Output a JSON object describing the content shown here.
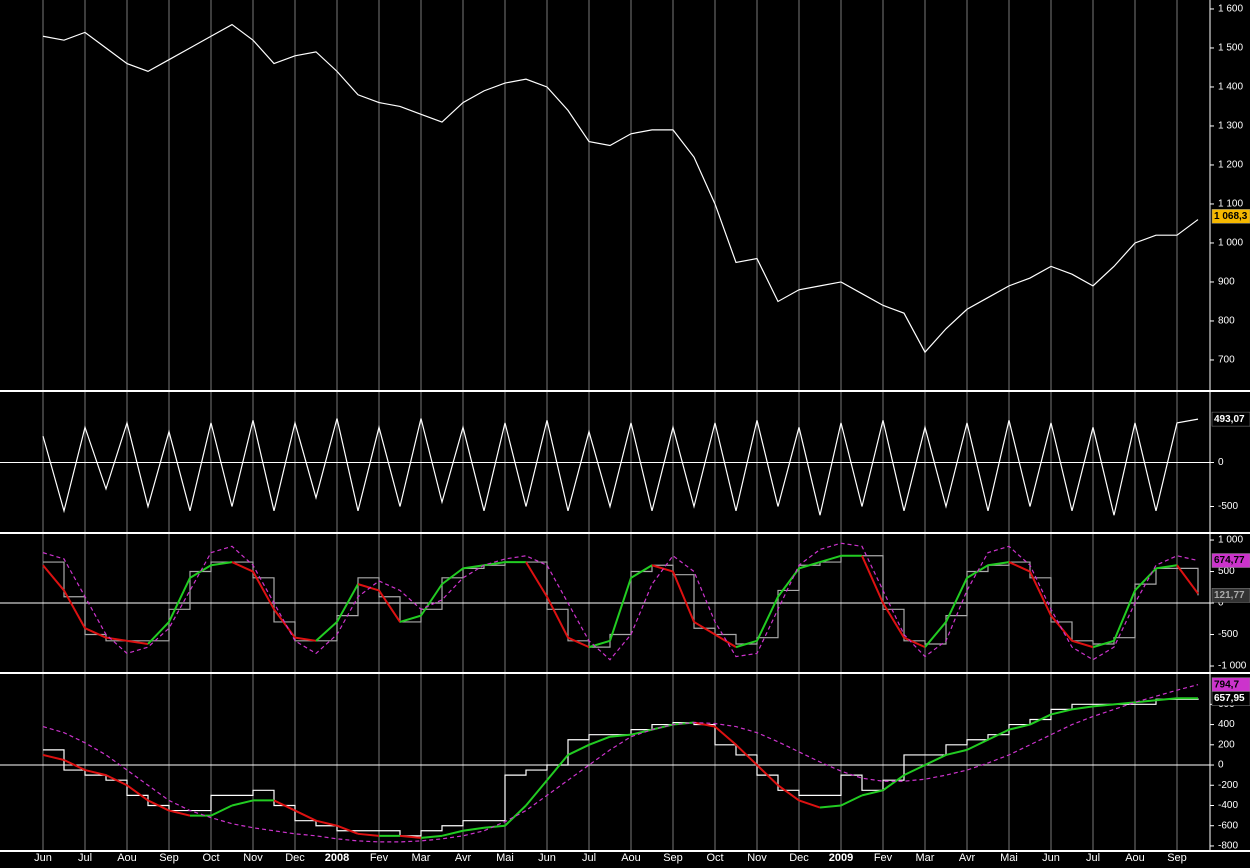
{
  "chart_data": [
    {
      "type": "line",
      "ylim": [
        623,
        1623
      ],
      "yticks": [
        {
          "value": 1600,
          "label": "1 600"
        },
        {
          "value": 1500,
          "label": "1 500"
        },
        {
          "value": 1400,
          "label": "1 400"
        },
        {
          "value": 1300,
          "label": "1 300"
        },
        {
          "value": 1200,
          "label": "1 200"
        },
        {
          "value": 1100,
          "label": "1 100"
        },
        {
          "value": 1000,
          "label": "1 000"
        },
        900,
        800,
        700
      ],
      "series": [
        {
          "color": "#ffffff",
          "style": "solid",
          "values": [
            1530,
            1520,
            1540,
            1500,
            1460,
            1440,
            1470,
            1500,
            1530,
            1560,
            1520,
            1460,
            1480,
            1490,
            1440,
            1380,
            1360,
            1350,
            1330,
            1310,
            1360,
            1390,
            1410,
            1420,
            1400,
            1340,
            1260,
            1250,
            1280,
            1290,
            1290,
            1220,
            1100,
            950,
            960,
            850,
            880,
            890,
            900,
            870,
            840,
            820,
            720,
            780,
            830,
            860,
            890,
            910,
            940,
            920,
            890,
            940,
            1000,
            1020,
            1020,
            1060
          ]
        }
      ],
      "markers": [
        {
          "value": 1068.3,
          "label": "1 068,3",
          "color": "#f5b800",
          "text_color": "#000000"
        }
      ]
    },
    {
      "type": "line",
      "ylim": [
        -790,
        790
      ],
      "yticks": [
        -500,
        0
      ],
      "hlines": [
        0
      ],
      "series": [
        {
          "color": "#ffffff",
          "style": "solid",
          "values": [
            300,
            -550,
            400,
            -300,
            450,
            -500,
            350,
            -550,
            450,
            -500,
            480,
            -550,
            450,
            -400,
            500,
            -550,
            400,
            -500,
            500,
            -450,
            400,
            -550,
            450,
            -500,
            480,
            -550,
            350,
            -500,
            450,
            -550,
            400,
            -500,
            450,
            -550,
            480,
            -500,
            400,
            -600,
            450,
            -500,
            480,
            -550,
            400,
            -500,
            450,
            -550,
            480,
            -500,
            450,
            -550,
            400,
            -600,
            450,
            -550,
            450,
            493.07
          ]
        }
      ],
      "markers": [
        {
          "value": 493.07,
          "label": "493,07",
          "color": "#000000",
          "text_color": "#ffffff"
        }
      ]
    },
    {
      "type": "line",
      "ylim": [
        -1095,
        1080
      ],
      "yticks": [
        {
          "value": 1000,
          "label": "1 000"
        },
        500,
        0,
        -500,
        {
          "value": -1000,
          "label": "-1 000"
        }
      ],
      "hlines": [
        0
      ],
      "series": [
        {
          "color": "#aaaaaa",
          "style": "step",
          "values": [
            650,
            100,
            -500,
            -600,
            -600,
            -600,
            -100,
            500,
            650,
            650,
            400,
            -300,
            -600,
            -600,
            -200,
            400,
            100,
            -300,
            -100,
            400,
            550,
            600,
            650,
            650,
            -100,
            -600,
            -700,
            -500,
            500,
            600,
            450,
            -400,
            -500,
            -650,
            -550,
            200,
            600,
            650,
            750,
            750,
            -100,
            -600,
            -650,
            -200,
            500,
            600,
            650,
            400,
            -300,
            -600,
            -650,
            -550,
            300,
            550,
            550,
            121.77
          ]
        },
        {
          "color": "#22cc22",
          "down_color": "#dd1111",
          "style": "slope",
          "values": [
            600,
            200,
            -400,
            -550,
            -600,
            -650,
            -300,
            400,
            600,
            650,
            500,
            -100,
            -550,
            -600,
            -300,
            300,
            200,
            -300,
            -200,
            300,
            550,
            600,
            650,
            650,
            100,
            -550,
            -700,
            -600,
            400,
            600,
            500,
            -300,
            -500,
            -700,
            -600,
            100,
            550,
            650,
            750,
            750,
            0,
            -550,
            -700,
            -300,
            400,
            600,
            650,
            500,
            -200,
            -600,
            -700,
            -600,
            200,
            550,
            600,
            150
          ]
        },
        {
          "color": "#cc33cc",
          "style": "dashed",
          "values": [
            800,
            700,
            100,
            -500,
            -800,
            -700,
            -400,
            200,
            800,
            900,
            600,
            0,
            -600,
            -800,
            -500,
            100,
            350,
            200,
            -100,
            50,
            400,
            600,
            700,
            750,
            600,
            0,
            -600,
            -900,
            -500,
            300,
            750,
            500,
            -300,
            -850,
            -800,
            -100,
            600,
            850,
            950,
            900,
            200,
            -500,
            -850,
            -600,
            200,
            800,
            900,
            600,
            -100,
            -700,
            -900,
            -700,
            0,
            600,
            750,
            674.77
          ]
        }
      ],
      "markers": [
        {
          "value": 674.77,
          "label": "674,77",
          "color": "#cc33cc",
          "text_color": "#000000"
        },
        {
          "value": 121.77,
          "label": "121,77",
          "color": "#333333",
          "text_color": "#aaaaaa"
        }
      ]
    },
    {
      "type": "line",
      "ylim": [
        -840,
        890
      ],
      "yticks": [
        600,
        400,
        200,
        0,
        -200,
        -400,
        -600,
        -800
      ],
      "hlines": [
        0
      ],
      "categories": [
        "Jun",
        null,
        "Jul",
        null,
        "Aou",
        null,
        "Sep",
        null,
        "Oct",
        null,
        "Nov",
        null,
        "Dec",
        null,
        "2008",
        null,
        "Fev",
        null,
        "Mar",
        null,
        "Avr",
        null,
        "Mai",
        null,
        "Jun",
        null,
        "Jul",
        null,
        "Aou",
        null,
        "Sep",
        null,
        "Oct",
        null,
        "Nov",
        null,
        "Dec",
        null,
        "2009",
        null,
        "Fev",
        null,
        "Mar",
        null,
        "Avr",
        null,
        "Mai",
        null,
        "Jun",
        null,
        "Jul",
        null,
        "Aou",
        null,
        "Sep",
        null
      ],
      "series": [
        {
          "color": "#ffffff",
          "style": "step",
          "values": [
            150,
            -50,
            -100,
            -150,
            -300,
            -400,
            -450,
            -450,
            -300,
            -300,
            -250,
            -400,
            -550,
            -600,
            -650,
            -650,
            -650,
            -700,
            -650,
            -600,
            -550,
            -550,
            -100,
            -50,
            0,
            250,
            300,
            300,
            350,
            400,
            420,
            400,
            200,
            100,
            -100,
            -250,
            -300,
            -300,
            -100,
            -250,
            -150,
            100,
            100,
            200,
            250,
            300,
            400,
            450,
            550,
            600,
            600,
            600,
            600,
            650,
            650,
            657.95
          ]
        },
        {
          "color": "#22cc22",
          "down_color": "#dd1111",
          "style": "slope",
          "values": [
            100,
            50,
            -50,
            -100,
            -200,
            -350,
            -450,
            -500,
            -500,
            -400,
            -350,
            -350,
            -450,
            -550,
            -600,
            -680,
            -700,
            -700,
            -720,
            -700,
            -650,
            -620,
            -600,
            -400,
            -150,
            100,
            200,
            280,
            300,
            350,
            400,
            420,
            380,
            200,
            0,
            -200,
            -350,
            -420,
            -400,
            -300,
            -250,
            -100,
            0,
            100,
            150,
            250,
            350,
            400,
            500,
            550,
            580,
            600,
            620,
            640,
            660,
            660
          ]
        },
        {
          "color": "#cc33cc",
          "style": "dashed",
          "values": [
            380,
            320,
            220,
            100,
            -50,
            -200,
            -350,
            -450,
            -520,
            -580,
            -620,
            -650,
            -680,
            -700,
            -730,
            -750,
            -760,
            -760,
            -750,
            -730,
            -700,
            -650,
            -560,
            -450,
            -300,
            -150,
            0,
            150,
            280,
            350,
            400,
            420,
            410,
            380,
            320,
            230,
            130,
            30,
            -60,
            -130,
            -160,
            -160,
            -140,
            -100,
            -50,
            20,
            100,
            200,
            300,
            400,
            480,
            550,
            620,
            680,
            740,
            794.7
          ]
        }
      ],
      "markers": [
        {
          "value": 794.7,
          "label": "794,7",
          "color": "#cc33cc",
          "text_color": "#000000"
        },
        {
          "value": 657.95,
          "label": "657,95",
          "color": "#000000",
          "text_color": "#ffffff"
        }
      ]
    }
  ]
}
